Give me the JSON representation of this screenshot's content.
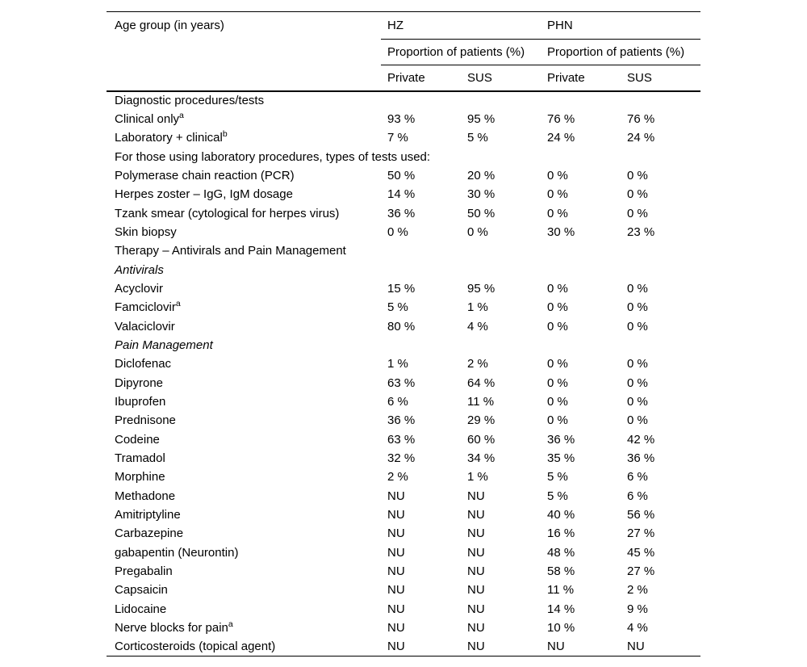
{
  "page": {
    "background_color": "#ffffff",
    "text_color": "#000000",
    "rule_color": "#000000"
  },
  "table": {
    "header": {
      "row_label_column": "Age group (in years)",
      "groups": [
        {
          "label": "HZ"
        },
        {
          "label": "PHN"
        }
      ],
      "group_subheader": "Proportion of patients (%)",
      "columns": [
        "Private",
        "SUS",
        "Private",
        "SUS"
      ]
    },
    "rows": [
      {
        "label": "Diagnostic procedures/tests",
        "style": "section",
        "values": [
          "",
          "",
          "",
          ""
        ]
      },
      {
        "label": "Clinical only",
        "sup": "a",
        "style": "data",
        "values": [
          "93 %",
          "95 %",
          "76 %",
          "76 %"
        ]
      },
      {
        "label": "Laboratory + clinical",
        "sup": "b",
        "style": "data",
        "values": [
          "7 %",
          "5 %",
          "24 %",
          "24 %"
        ]
      },
      {
        "label": "For those using laboratory procedures, types of tests used:",
        "style": "section",
        "values": [
          "",
          "",
          "",
          ""
        ]
      },
      {
        "label": "Polymerase chain reaction (PCR)",
        "style": "data",
        "values": [
          "50 %",
          "20 %",
          "0 %",
          "0 %"
        ]
      },
      {
        "label": "Herpes zoster – IgG, IgM dosage",
        "style": "data",
        "values": [
          "14 %",
          "30 %",
          "0 %",
          "0 %"
        ]
      },
      {
        "label": "Tzank smear (cytological for herpes virus)",
        "style": "data",
        "values": [
          "36 %",
          "50 %",
          "0 %",
          "0 %"
        ]
      },
      {
        "label": "Skin biopsy",
        "style": "data",
        "values": [
          "0 %",
          "0 %",
          "30 %",
          "23 %"
        ]
      },
      {
        "label": "Therapy – Antivirals and Pain Management",
        "style": "section",
        "values": [
          "",
          "",
          "",
          ""
        ]
      },
      {
        "label": "Antivirals",
        "style": "italic",
        "values": [
          "",
          "",
          "",
          ""
        ]
      },
      {
        "label": "Acyclovir",
        "style": "data",
        "values": [
          "15 %",
          "95 %",
          "0 %",
          "0 %"
        ]
      },
      {
        "label": "Famciclovir",
        "sup": "a",
        "style": "data",
        "values": [
          "5 %",
          "1 %",
          "0 %",
          "0 %"
        ]
      },
      {
        "label": "Valaciclovir",
        "style": "data",
        "values": [
          "80 %",
          "4 %",
          "0 %",
          "0 %"
        ]
      },
      {
        "label": "Pain Management",
        "style": "italic",
        "values": [
          "",
          "",
          "",
          ""
        ]
      },
      {
        "label": "Diclofenac",
        "style": "data",
        "values": [
          "1 %",
          "2 %",
          "0 %",
          "0 %"
        ]
      },
      {
        "label": "Dipyrone",
        "style": "data",
        "values": [
          "63 %",
          "64 %",
          "0 %",
          "0 %"
        ]
      },
      {
        "label": "Ibuprofen",
        "style": "data",
        "values": [
          "6 %",
          "11 %",
          "0 %",
          "0 %"
        ]
      },
      {
        "label": "Prednisone",
        "style": "data",
        "values": [
          "36 %",
          "29 %",
          "0 %",
          "0 %"
        ]
      },
      {
        "label": "Codeine",
        "style": "data",
        "values": [
          "63 %",
          "60 %",
          "36 %",
          "42 %"
        ]
      },
      {
        "label": "Tramadol",
        "style": "data",
        "values": [
          "32 %",
          "34 %",
          "35 %",
          "36 %"
        ]
      },
      {
        "label": "Morphine",
        "style": "data",
        "values": [
          "2 %",
          "1 %",
          "5 %",
          "6 %"
        ]
      },
      {
        "label": "Methadone",
        "style": "data",
        "values": [
          "NU",
          "NU",
          "5 %",
          "6 %"
        ]
      },
      {
        "label": "Amitriptyline",
        "style": "data",
        "values": [
          "NU",
          "NU",
          "40 %",
          "56 %"
        ]
      },
      {
        "label": "Carbazepine",
        "style": "data",
        "values": [
          "NU",
          "NU",
          "16 %",
          "27 %"
        ]
      },
      {
        "label": "gabapentin (Neurontin)",
        "style": "data",
        "values": [
          "NU",
          "NU",
          "48 %",
          "45 %"
        ]
      },
      {
        "label": "Pregabalin",
        "style": "data",
        "values": [
          "NU",
          "NU",
          "58 %",
          "27 %"
        ]
      },
      {
        "label": "Capsaicin",
        "style": "data",
        "values": [
          "NU",
          "NU",
          "11 %",
          "2 %"
        ]
      },
      {
        "label": "Lidocaine",
        "style": "data",
        "values": [
          "NU",
          "NU",
          "14 %",
          "9 %"
        ]
      },
      {
        "label": "Nerve blocks for pain",
        "sup": "a",
        "style": "data",
        "values": [
          "NU",
          "NU",
          "10 %",
          "4 %"
        ]
      },
      {
        "label": "Corticosteroids (topical agent)",
        "style": "data",
        "values": [
          "NU",
          "NU",
          "NU",
          "NU"
        ]
      }
    ]
  }
}
